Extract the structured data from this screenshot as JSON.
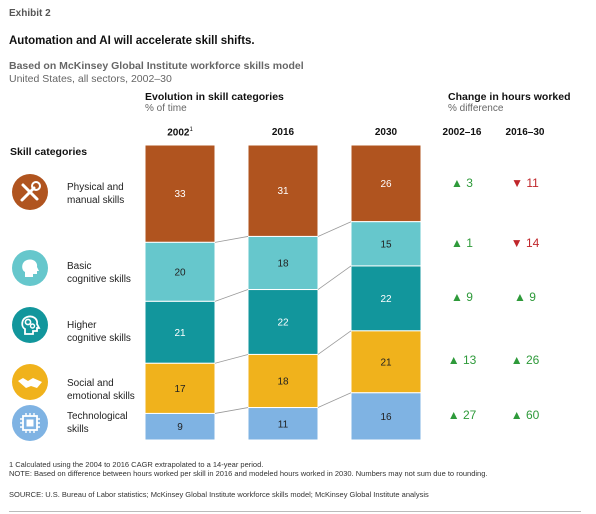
{
  "exhibit": "Exhibit 2",
  "title": "Automation and AI will accelerate skill shifts.",
  "subtitle": "Based on McKinsey Global Institute workforce skills model",
  "subtitle2": "United States, all sectors, 2002–30",
  "evolution_header": "Evolution in skill categories",
  "evolution_sub": "% of time",
  "change_header": "Change in hours worked",
  "change_sub": "% difference",
  "skill_categories_label": "Skill categories",
  "columns": {
    "c2002": "2002",
    "c2002_sup": "1",
    "c2016": "2016",
    "c2030": "2030",
    "d1": "2002–16",
    "d2": "2016–30"
  },
  "skills": [
    {
      "line1": "Physical and",
      "line2": "manual skills",
      "icon": "tools-icon"
    },
    {
      "line1": "Basic",
      "line2": "cognitive skills",
      "icon": "head-icon"
    },
    {
      "line1": "Higher",
      "line2": "cognitive skills",
      "icon": "gears-head-icon"
    },
    {
      "line1": "Social and",
      "line2": "emotional skills",
      "icon": "handshake-icon"
    },
    {
      "line1": "Technological",
      "line2": "skills",
      "icon": "chip-icon"
    }
  ],
  "changes": [
    {
      "d1": "3",
      "d1_dir": "up",
      "d2": "11",
      "d2_dir": "down"
    },
    {
      "d1": "1",
      "d1_dir": "up",
      "d2": "14",
      "d2_dir": "down"
    },
    {
      "d1": "9",
      "d1_dir": "up",
      "d2": "9",
      "d2_dir": "up"
    },
    {
      "d1": "13",
      "d1_dir": "up",
      "d2": "26",
      "d2_dir": "up"
    },
    {
      "d1": "27",
      "d1_dir": "up",
      "d2": "60",
      "d2_dir": "up"
    }
  ],
  "chart_data": {
    "type": "bar",
    "stacked": true,
    "categories": [
      "2002",
      "2016",
      "2030"
    ],
    "series": [
      {
        "name": "Physical and manual skills",
        "values": [
          33,
          31,
          26
        ],
        "color": "#b0541f"
      },
      {
        "name": "Basic cognitive skills",
        "values": [
          20,
          18,
          15
        ],
        "color": "#66c7cc"
      },
      {
        "name": "Higher cognitive skills",
        "values": [
          21,
          22,
          22
        ],
        "color": "#12969c"
      },
      {
        "name": "Social and emotional skills",
        "values": [
          17,
          18,
          21
        ],
        "color": "#f0b21c"
      },
      {
        "name": "Technological skills",
        "values": [
          9,
          11,
          16
        ],
        "color": "#7fb3e3"
      }
    ]
  },
  "icon_colors": [
    "#b0541f",
    "#66c7cc",
    "#12969c",
    "#f0b21c",
    "#7fb3e3"
  ],
  "footnote1": "1  Calculated using the 2004 to 2016 CAGR extrapolated to a 14-year period.",
  "note": "NOTE: Based on difference between hours worked per skill in 2016 and modeled hours worked in 2030. Numbers may not sum due to rounding.",
  "source": "SOURCE: U.S. Bureau of Labor statistics; McKinsey Global Institute workforce skills model; McKinsey Global Institute analysis"
}
